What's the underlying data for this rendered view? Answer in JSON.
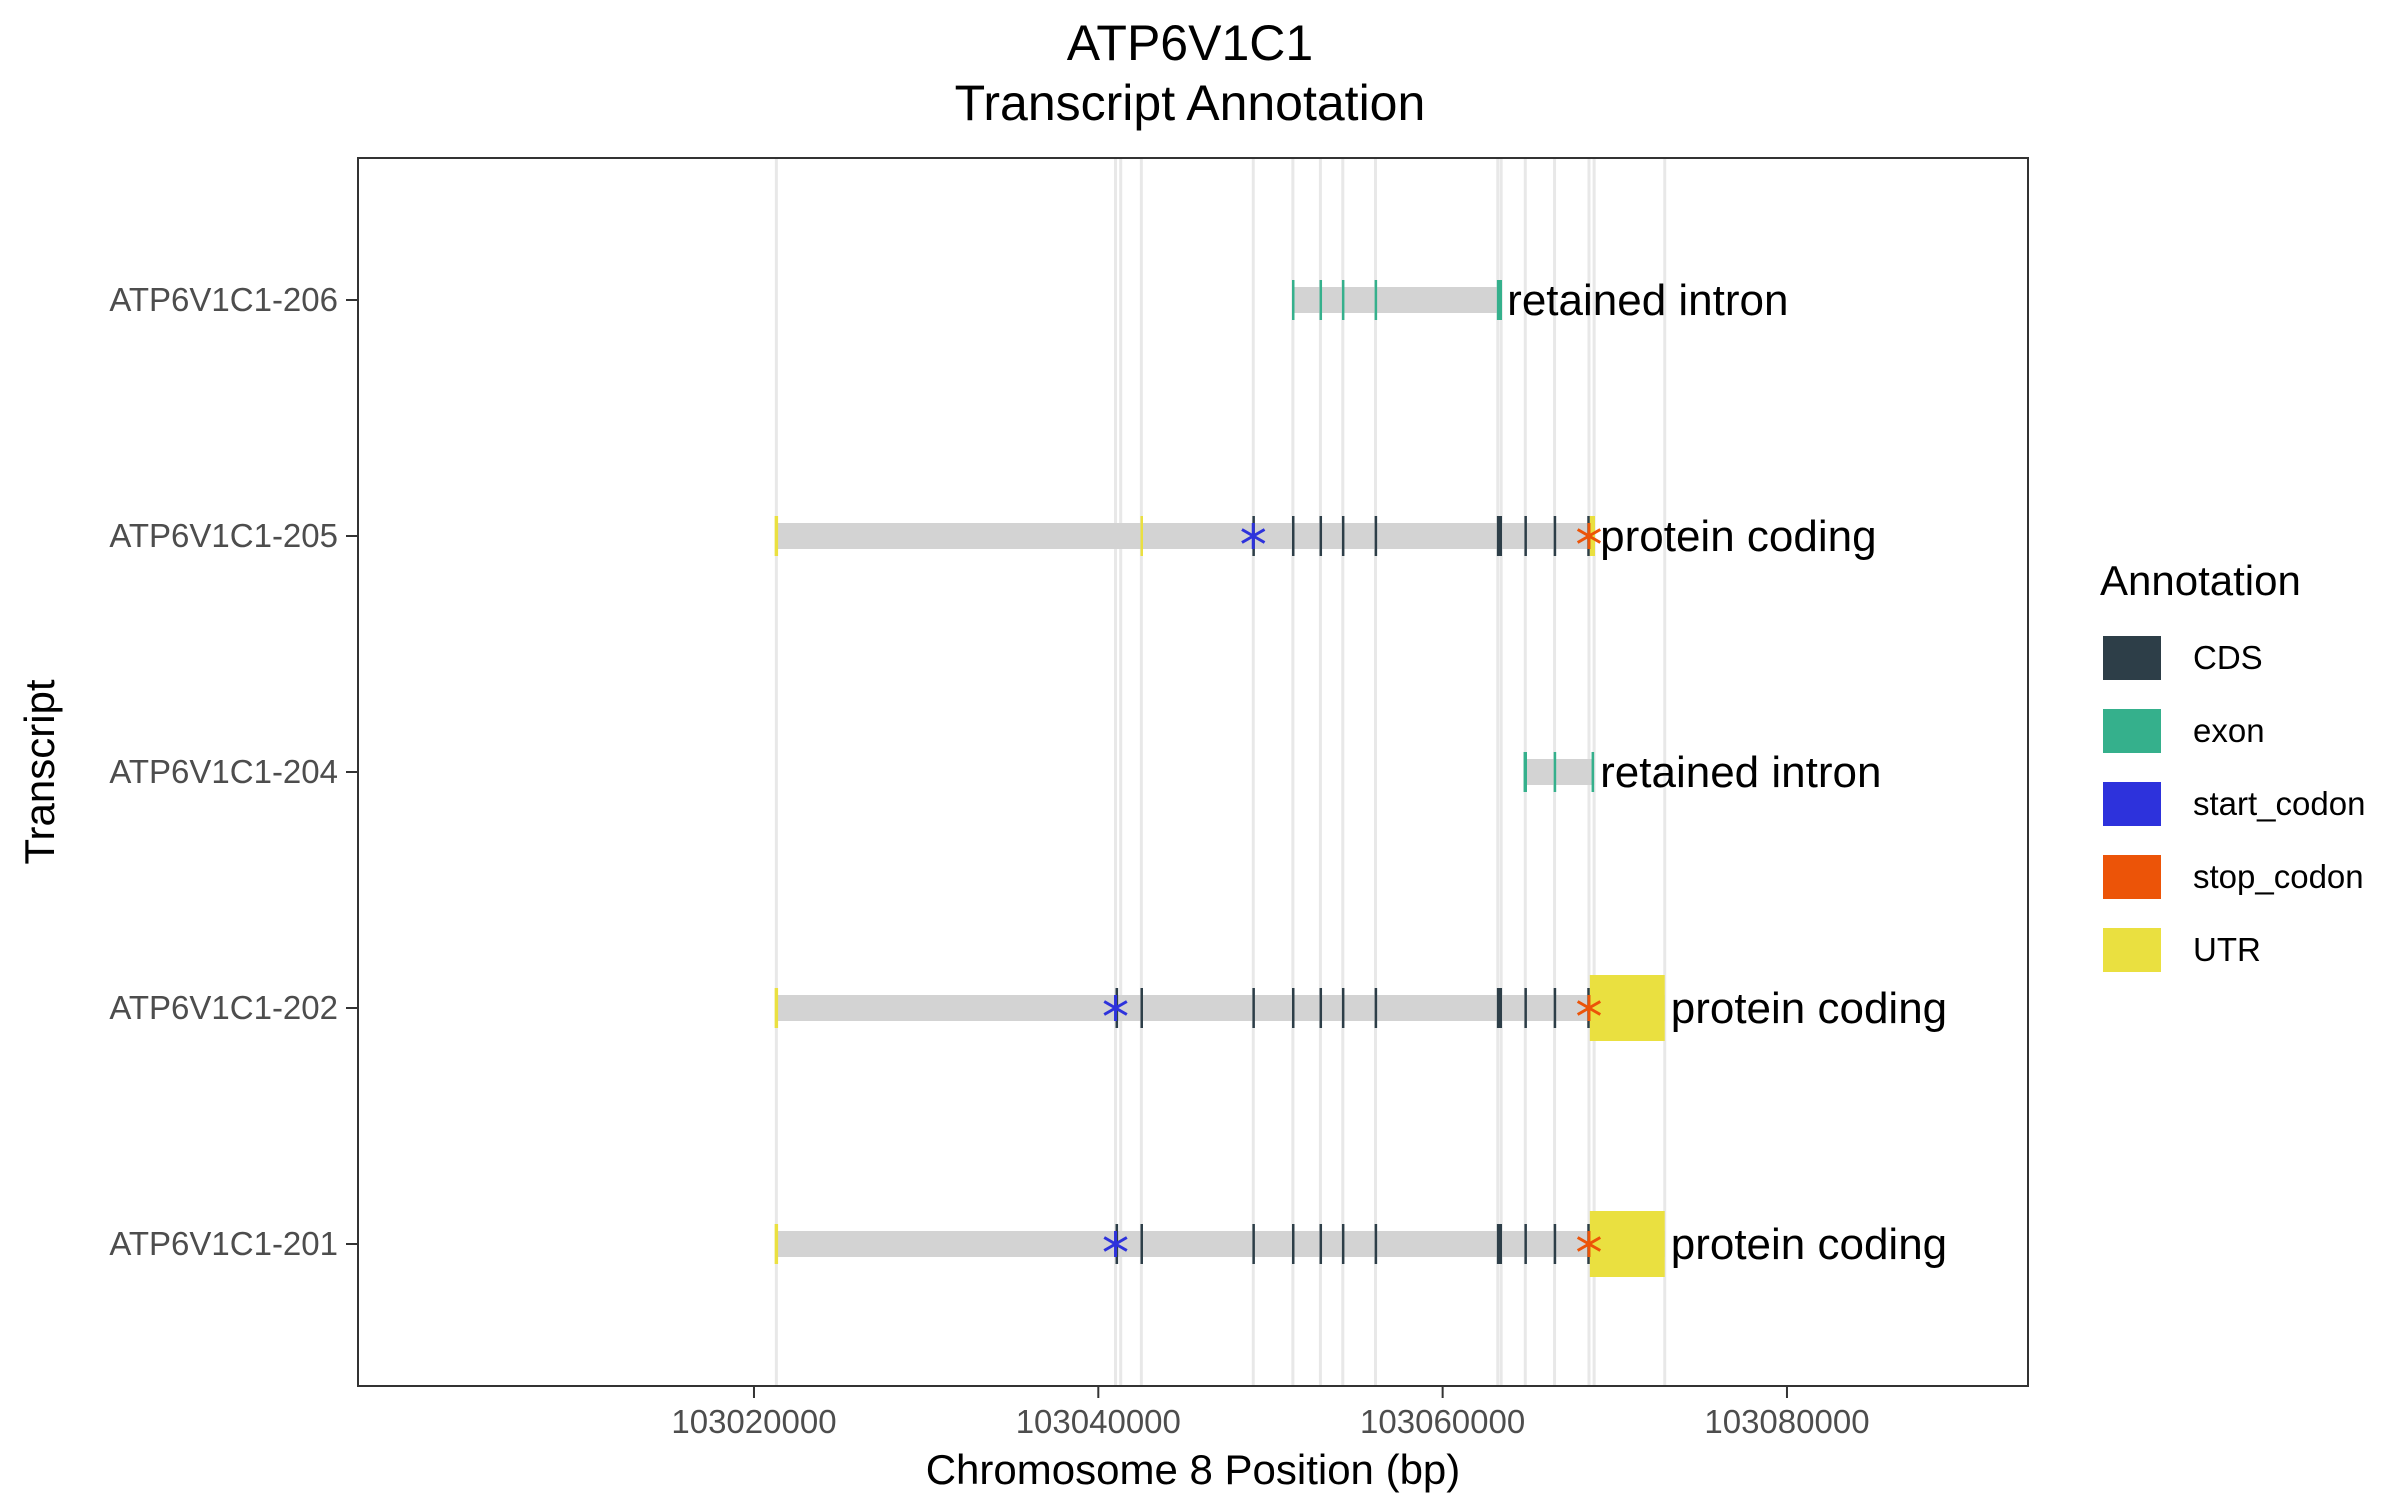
{
  "chart_data": {
    "type": "gene_track",
    "title": "ATP6V1C1",
    "subtitle": "Transcript Annotation",
    "xlabel": "Chromosome 8 Position (bp)",
    "ylabel": "Transcript",
    "xlim": [
      102997000,
      103094000
    ],
    "xticks": [
      103020000,
      103040000,
      103060000,
      103080000
    ],
    "xtick_labels": [
      "103020000",
      "103040000",
      "103060000",
      "103080000"
    ],
    "grid": false,
    "legend": {
      "title": "Annotation",
      "position": "right",
      "entries": [
        {
          "label": "CDS",
          "color": "#2d3e48"
        },
        {
          "label": "exon",
          "color": "#35b08c"
        },
        {
          "label": "start_codon",
          "color": "#2d32dc"
        },
        {
          "label": "stop_codon",
          "color": "#ec5408"
        },
        {
          "label": "UTR",
          "color": "#eae040"
        }
      ]
    },
    "colors": {
      "intron": "#d3d3d3",
      "guide": "#e8e8e8",
      "CDS": "#2d3e48",
      "exon": "#35b08c",
      "start_codon": "#2d32dc",
      "stop_codon": "#ec5408",
      "UTR": "#eae040"
    },
    "guide_positions": [
      103021300,
      103041000,
      103041300,
      103042500,
      103049000,
      103051300,
      103052900,
      103054200,
      103056100,
      103063200,
      103063400,
      103064800,
      103066500,
      103068500,
      103068800,
      103072900
    ],
    "transcripts": [
      {
        "name": "ATP6V1C1-206",
        "biotype": "retained intron",
        "start": 103051300,
        "end": 103063400,
        "features": [
          {
            "type": "exon",
            "start": 103051250,
            "end": 103051350
          },
          {
            "type": "exon",
            "start": 103052850,
            "end": 103052950
          },
          {
            "type": "exon",
            "start": 103054150,
            "end": 103054250
          },
          {
            "type": "exon",
            "start": 103056050,
            "end": 103056150
          },
          {
            "type": "exon",
            "start": 103063150,
            "end": 103063450
          }
        ]
      },
      {
        "name": "ATP6V1C1-205",
        "biotype": "protein coding",
        "start": 103021300,
        "end": 103068800,
        "features": [
          {
            "type": "UTR",
            "start": 103021200,
            "end": 103021400
          },
          {
            "type": "UTR",
            "start": 103042450,
            "end": 103042550
          },
          {
            "type": "CDS",
            "start": 103048950,
            "end": 103049050
          },
          {
            "type": "CDS",
            "start": 103051250,
            "end": 103051350
          },
          {
            "type": "CDS",
            "start": 103052850,
            "end": 103052950
          },
          {
            "type": "CDS",
            "start": 103054150,
            "end": 103054250
          },
          {
            "type": "CDS",
            "start": 103056050,
            "end": 103056150
          },
          {
            "type": "CDS",
            "start": 103063150,
            "end": 103063450
          },
          {
            "type": "CDS",
            "start": 103064750,
            "end": 103064850
          },
          {
            "type": "CDS",
            "start": 103066450,
            "end": 103066550
          },
          {
            "type": "CDS",
            "start": 103068400,
            "end": 103068550
          },
          {
            "type": "UTR",
            "start": 103068550,
            "end": 103068850
          },
          {
            "type": "start_codon",
            "start": 103049000,
            "end": 103049000
          },
          {
            "type": "stop_codon",
            "start": 103068500,
            "end": 103068500
          }
        ]
      },
      {
        "name": "ATP6V1C1-204",
        "biotype": "retained intron",
        "start": 103064800,
        "end": 103068800,
        "features": [
          {
            "type": "exon",
            "start": 103064700,
            "end": 103064900
          },
          {
            "type": "exon",
            "start": 103066450,
            "end": 103066550
          },
          {
            "type": "exon",
            "start": 103068650,
            "end": 103068800
          }
        ]
      },
      {
        "name": "ATP6V1C1-202",
        "biotype": "protein coding",
        "start": 103021300,
        "end": 103072900,
        "features": [
          {
            "type": "UTR",
            "start": 103021200,
            "end": 103021400
          },
          {
            "type": "CDS",
            "start": 103041000,
            "end": 103041150
          },
          {
            "type": "CDS",
            "start": 103042450,
            "end": 103042550
          },
          {
            "type": "CDS",
            "start": 103048950,
            "end": 103049050
          },
          {
            "type": "CDS",
            "start": 103051250,
            "end": 103051350
          },
          {
            "type": "CDS",
            "start": 103052850,
            "end": 103052950
          },
          {
            "type": "CDS",
            "start": 103054150,
            "end": 103054250
          },
          {
            "type": "CDS",
            "start": 103056050,
            "end": 103056150
          },
          {
            "type": "CDS",
            "start": 103063150,
            "end": 103063450
          },
          {
            "type": "CDS",
            "start": 103064750,
            "end": 103064850
          },
          {
            "type": "CDS",
            "start": 103066450,
            "end": 103066550
          },
          {
            "type": "CDS",
            "start": 103068400,
            "end": 103068550
          },
          {
            "type": "UTR",
            "start": 103068550,
            "end": 103072900
          },
          {
            "type": "start_codon",
            "start": 103041000,
            "end": 103041000
          },
          {
            "type": "stop_codon",
            "start": 103068500,
            "end": 103068500
          }
        ]
      },
      {
        "name": "ATP6V1C1-201",
        "biotype": "protein coding",
        "start": 103021300,
        "end": 103072900,
        "features": [
          {
            "type": "UTR",
            "start": 103021200,
            "end": 103021400
          },
          {
            "type": "CDS",
            "start": 103041000,
            "end": 103041150
          },
          {
            "type": "CDS",
            "start": 103042450,
            "end": 103042550
          },
          {
            "type": "CDS",
            "start": 103048950,
            "end": 103049050
          },
          {
            "type": "CDS",
            "start": 103051250,
            "end": 103051350
          },
          {
            "type": "CDS",
            "start": 103052850,
            "end": 103052950
          },
          {
            "type": "CDS",
            "start": 103054150,
            "end": 103054250
          },
          {
            "type": "CDS",
            "start": 103056050,
            "end": 103056150
          },
          {
            "type": "CDS",
            "start": 103063150,
            "end": 103063450
          },
          {
            "type": "CDS",
            "start": 103064750,
            "end": 103064850
          },
          {
            "type": "CDS",
            "start": 103066450,
            "end": 103066550
          },
          {
            "type": "CDS",
            "start": 103068400,
            "end": 103068550
          },
          {
            "type": "UTR",
            "start": 103068550,
            "end": 103072900
          },
          {
            "type": "start_codon",
            "start": 103041000,
            "end": 103041000
          },
          {
            "type": "stop_codon",
            "start": 103068500,
            "end": 103068500
          }
        ]
      }
    ]
  }
}
